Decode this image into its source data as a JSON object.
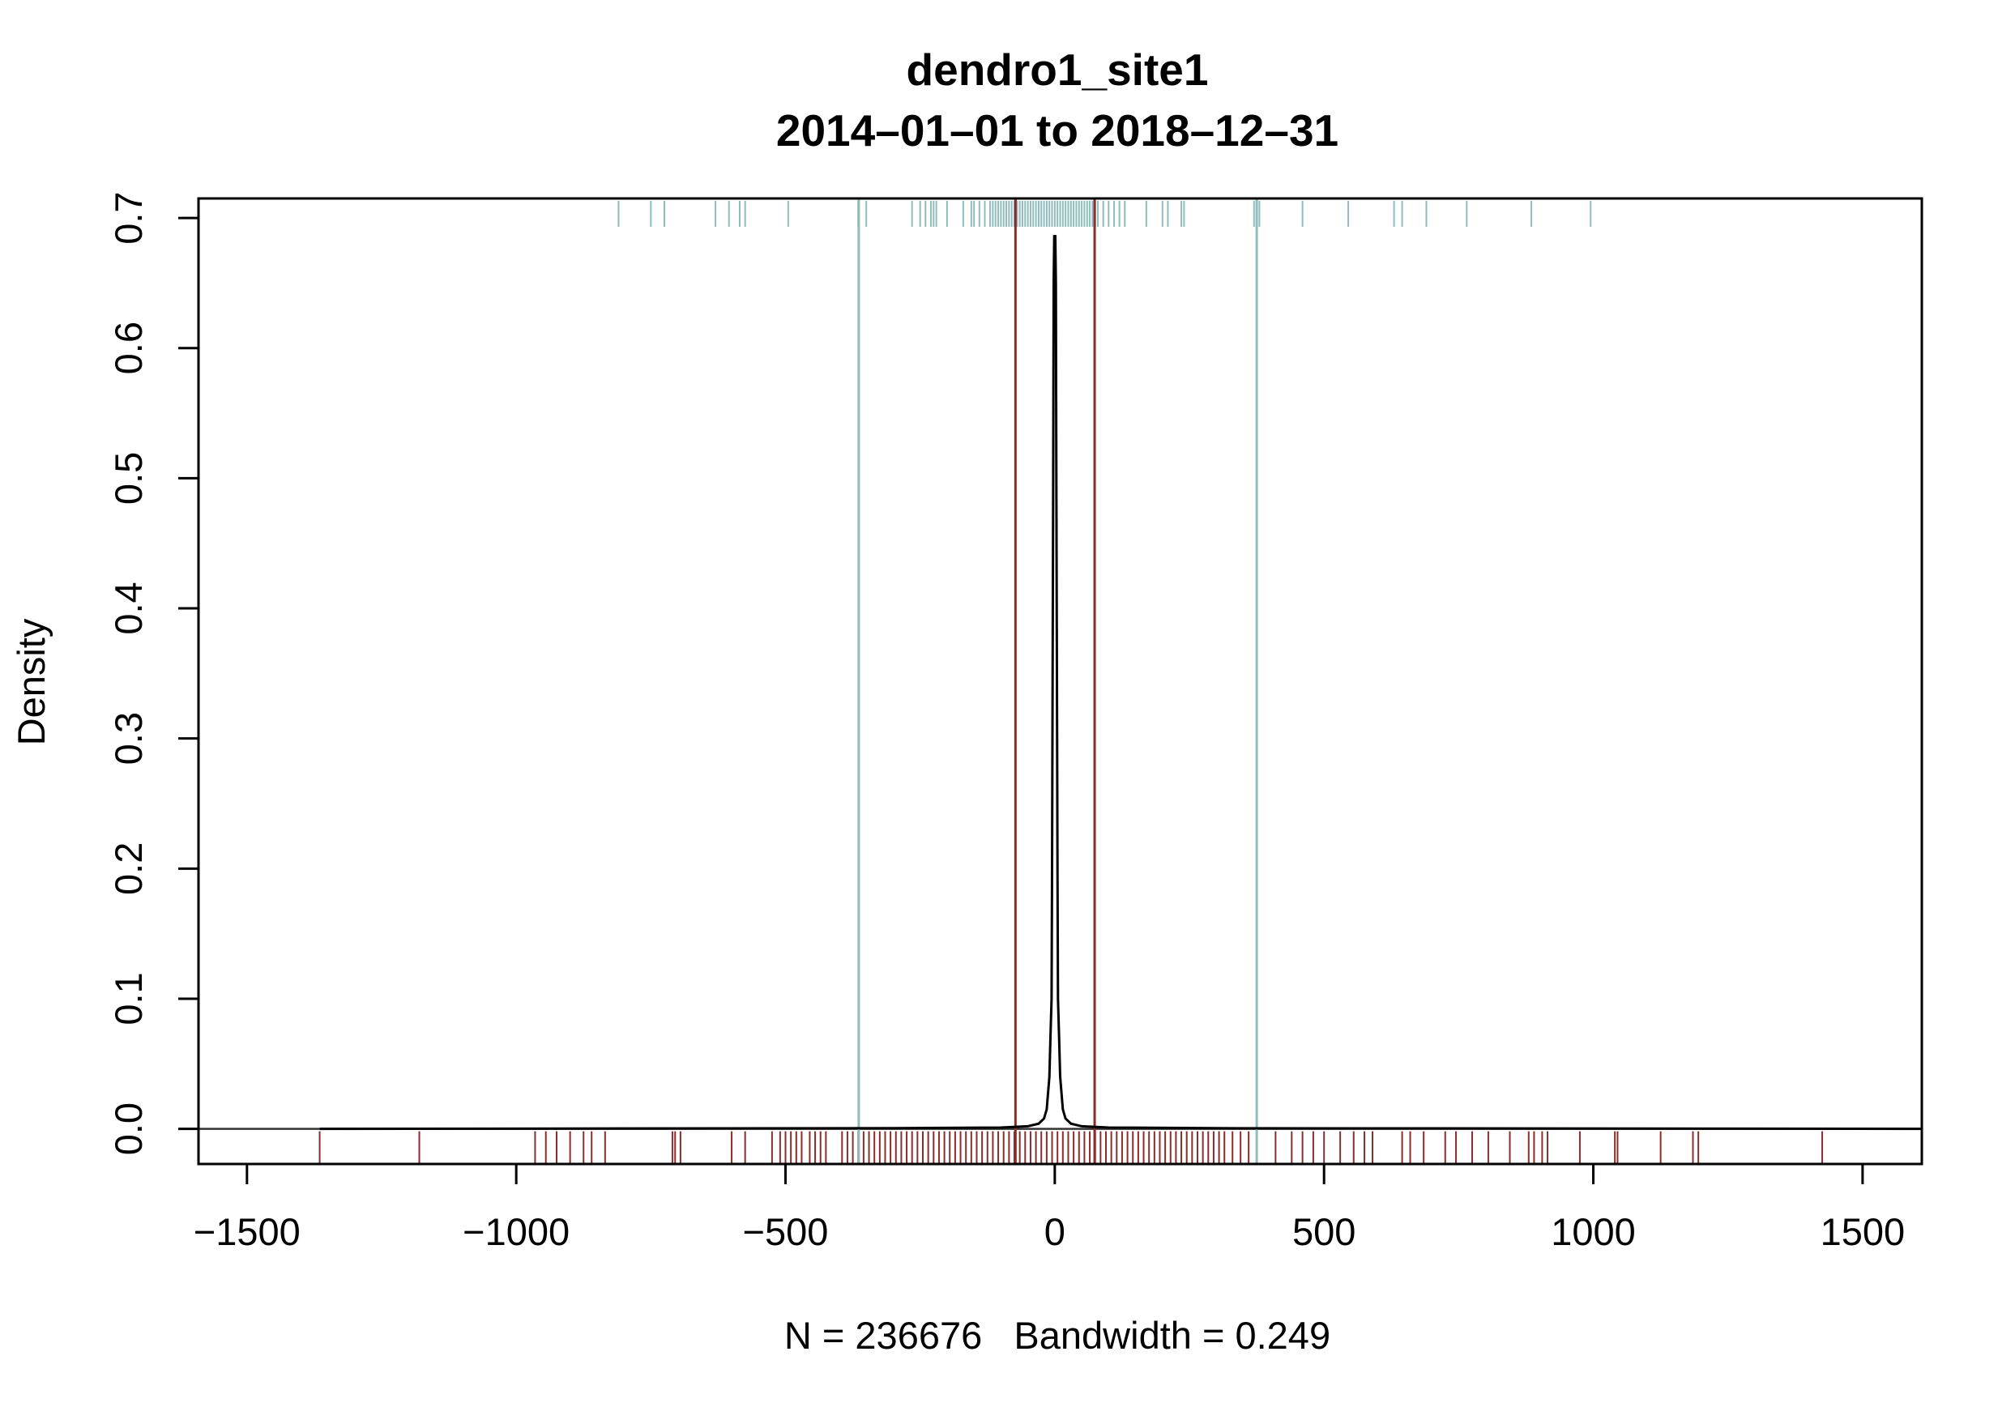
{
  "chart_data": {
    "type": "line",
    "title": "dendro1_site1",
    "subtitle": "2014–01–01 to 2018–12–31",
    "xlabel": "N = 236676   Bandwidth = 0.249",
    "ylabel": "Density",
    "xlim": [
      -1590,
      1610
    ],
    "ylim": [
      -0.027,
      0.715
    ],
    "x_ticks": [
      -1500,
      -1000,
      -500,
      0,
      500,
      1000,
      1500
    ],
    "x_tick_labels": [
      "−1500",
      "−1000",
      "−500",
      "0",
      "500",
      "1000",
      "1500"
    ],
    "y_ticks": [
      0.0,
      0.1,
      0.2,
      0.3,
      0.4,
      0.5,
      0.6,
      0.7
    ],
    "y_tick_labels": [
      "0.0",
      "0.1",
      "0.2",
      "0.3",
      "0.4",
      "0.5",
      "0.6",
      "0.7"
    ],
    "grid": false,
    "colors": {
      "density_line": "#000000",
      "baseline": "#333333",
      "outer_vlines": "#8fbcbd",
      "inner_vlines": "#8b2d2b",
      "top_rug": "#8fbcbd",
      "bottom_rug": "#8b2d2b"
    },
    "density_curve": {
      "x": [
        -1365,
        -300,
        -100,
        -50,
        -30,
        -20,
        -15,
        -10,
        -8,
        -6,
        -5,
        -4,
        -3,
        -2,
        -1,
        0,
        1,
        2,
        3,
        4,
        5,
        6,
        8,
        10,
        15,
        20,
        30,
        50,
        100,
        300,
        1610
      ],
      "y": [
        0,
        0.0005,
        0.001,
        0.002,
        0.004,
        0.008,
        0.015,
        0.04,
        0.07,
        0.1,
        0.2,
        0.35,
        0.5,
        0.65,
        0.686,
        0.686,
        0.686,
        0.65,
        0.5,
        0.35,
        0.2,
        0.1,
        0.07,
        0.04,
        0.015,
        0.008,
        0.004,
        0.002,
        0.001,
        0.0005,
        0
      ]
    },
    "vertical_lines": [
      {
        "x": -364,
        "group": "outer"
      },
      {
        "x": 375,
        "group": "outer"
      },
      {
        "x": -73,
        "group": "inner"
      },
      {
        "x": 74,
        "group": "inner"
      }
    ],
    "rug_top": [
      -810,
      -750,
      -725,
      -630,
      -605,
      -585,
      -575,
      -495,
      -365,
      -350,
      -265,
      -250,
      -240,
      -230,
      -225,
      -220,
      -200,
      -170,
      -155,
      -150,
      -140,
      -130,
      -120,
      -115,
      -110,
      -105,
      -100,
      -95,
      -90,
      -85,
      -80,
      -75,
      -70,
      -65,
      -60,
      -55,
      -50,
      -45,
      -40,
      -35,
      -30,
      -25,
      -20,
      -15,
      -10,
      -5,
      0,
      5,
      10,
      15,
      20,
      25,
      30,
      35,
      40,
      45,
      50,
      55,
      60,
      65,
      70,
      75,
      80,
      90,
      100,
      110,
      120,
      130,
      170,
      200,
      210,
      235,
      240,
      370,
      380,
      460,
      545,
      630,
      645,
      690,
      765,
      885,
      995
    ],
    "rug_bottom": [
      -1365,
      -1180,
      -965,
      -945,
      -925,
      -900,
      -875,
      -860,
      -835,
      -710,
      -705,
      -695,
      -600,
      -575,
      -525,
      -510,
      -500,
      -490,
      -480,
      -470,
      -455,
      -445,
      -435,
      -425,
      -395,
      -385,
      -375,
      -365,
      -355,
      -345,
      -335,
      -325,
      -315,
      -305,
      -295,
      -285,
      -275,
      -265,
      -255,
      -245,
      -235,
      -225,
      -215,
      -205,
      -195,
      -185,
      -175,
      -165,
      -155,
      -145,
      -135,
      -125,
      -115,
      -105,
      -95,
      -85,
      -75,
      -65,
      -55,
      -45,
      -35,
      -25,
      -15,
      -5,
      5,
      15,
      25,
      35,
      45,
      55,
      65,
      75,
      85,
      95,
      105,
      115,
      125,
      135,
      145,
      155,
      165,
      175,
      185,
      195,
      205,
      215,
      225,
      235,
      245,
      255,
      265,
      275,
      285,
      295,
      305,
      315,
      330,
      345,
      360,
      375,
      410,
      440,
      460,
      480,
      500,
      530,
      555,
      575,
      590,
      645,
      660,
      685,
      725,
      745,
      775,
      805,
      845,
      880,
      890,
      905,
      915,
      975,
      1040,
      1045,
      1125,
      1185,
      1195,
      1425
    ]
  }
}
